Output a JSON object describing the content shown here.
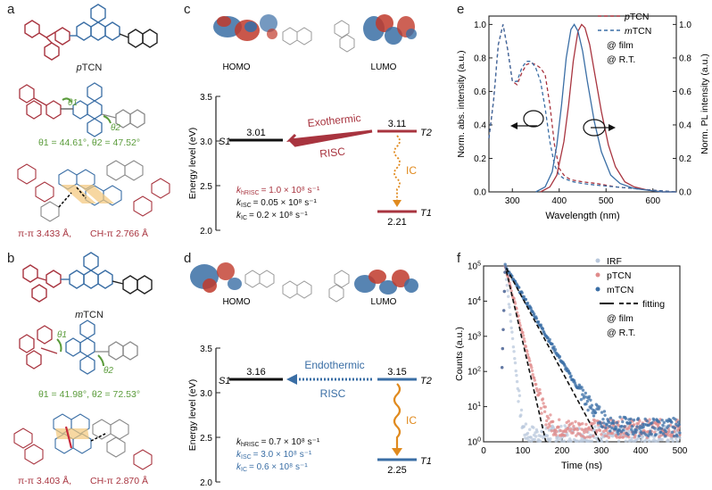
{
  "colors": {
    "red": "#a8343f",
    "blue": "#3a6ea5",
    "green": "#5a9b3a",
    "orange": "#e08a1e",
    "black": "#111111",
    "grey": "#999999"
  },
  "panel_a": {
    "letter": "a",
    "molecule_label": "pTCN",
    "molecule_label_prefix": "p",
    "molecule_label_suffix": "TCN",
    "theta1_label": "θ1",
    "theta2_label": "θ2",
    "angles_text": "θ1 = 44.61°, θ2 = 47.52°",
    "stacking_text_red": "π-π 3.433 Å,",
    "stacking_text_black": "CH-π 2.766 Å"
  },
  "panel_b": {
    "letter": "b",
    "molecule_label": "mTCN",
    "molecule_label_prefix": "m",
    "molecule_label_suffix": "TCN",
    "theta1_label": "θ1",
    "theta2_label": "θ2",
    "angles_text": "θ1 = 41.98°, θ2 = 72.53°",
    "stacking_text_red": "π-π 3.403 Å,",
    "stacking_text_black": "CH-π 2.870 Å"
  },
  "panel_c": {
    "letter": "c",
    "homo_label": "HOMO",
    "lumo_label": "LUMO",
    "ylabel": "Energy level (eV)",
    "yticks": [
      "3.5",
      "3.0",
      "2.5",
      "2.0"
    ],
    "ylim": [
      2.0,
      3.5
    ],
    "s1_label": "S1",
    "s1_value": "3.01",
    "t2_label": "T2",
    "t2_value": "3.11",
    "t1_label": "T1",
    "t1_value": "2.21",
    "arrow_label_1": "Exothermic",
    "arrow_label_2": "RISC",
    "ic_label": "IC",
    "k_rows": [
      {
        "name": "k",
        "sub": "hRISC",
        "value": "= 1.0 × 10⁸ s⁻¹",
        "color": "red"
      },
      {
        "name": "k",
        "sub": "ISC",
        "value": "= 0.05 × 10⁸ s⁻¹",
        "color": "black"
      },
      {
        "name": "k",
        "sub": "IC",
        "value": "= 0.2 × 10⁸ s⁻¹",
        "color": "black"
      }
    ]
  },
  "panel_d": {
    "letter": "d",
    "homo_label": "HOMO",
    "lumo_label": "LUMO",
    "ylabel": "Energy level (eV)",
    "yticks": [
      "3.5",
      "3.0",
      "2.5",
      "2.0"
    ],
    "ylim": [
      2.0,
      3.5
    ],
    "s1_label": "S1",
    "s1_value": "3.16",
    "t2_label": "T2",
    "t2_value": "3.15",
    "t1_label": "T1",
    "t1_value": "2.25",
    "arrow_label_1": "Endothermic",
    "arrow_label_2": "RISC",
    "ic_label": "IC",
    "k_rows": [
      {
        "name": "k",
        "sub": "hRISC",
        "value": "= 0.7 × 10⁸ s⁻¹",
        "color": "black"
      },
      {
        "name": "k",
        "sub": "ISC",
        "value": "= 3.0 × 10⁸ s⁻¹",
        "color": "blue"
      },
      {
        "name": "k",
        "sub": "IC",
        "value": "= 0.6 × 10⁸ s⁻¹",
        "color": "blue"
      }
    ]
  },
  "chart_data": [
    {
      "panel": "e",
      "type": "line",
      "xlabel": "Wavelength (nm)",
      "ylabel_left": "Norm. abs. intensity (a.u.)",
      "ylabel_right": "Norm. PL intensity (a.u.)",
      "xlim": [
        250,
        650
      ],
      "ylim": [
        0,
        1.05
      ],
      "xticks": [
        "300",
        "400",
        "500",
        "600"
      ],
      "yticks": [
        "0.0",
        "0.2",
        "0.4",
        "0.6",
        "0.8",
        "1.0"
      ],
      "legend": [
        "pTCN",
        "mTCN"
      ],
      "legend_prefixes": [
        "p",
        "m"
      ],
      "legend_suffix": "TCN",
      "notes": [
        "@ film",
        "@ R.T."
      ],
      "series": [
        {
          "name": "pTCN abs",
          "style": "dashed",
          "color": "red",
          "x": [
            250,
            260,
            270,
            280,
            290,
            300,
            310,
            320,
            330,
            340,
            350,
            360,
            370,
            380,
            390,
            400,
            410,
            420,
            430,
            450,
            480,
            520,
            560,
            600,
            650
          ],
          "y": [
            0.32,
            0.55,
            0.88,
            1.0,
            0.85,
            0.66,
            0.64,
            0.71,
            0.76,
            0.77,
            0.76,
            0.74,
            0.7,
            0.52,
            0.28,
            0.14,
            0.1,
            0.08,
            0.07,
            0.06,
            0.05,
            0.03,
            0.02,
            0.01,
            0.0
          ]
        },
        {
          "name": "mTCN abs",
          "style": "dashed",
          "color": "blue",
          "x": [
            250,
            260,
            270,
            280,
            290,
            300,
            310,
            320,
            330,
            340,
            350,
            360,
            370,
            380,
            390,
            400,
            410,
            420,
            430,
            450,
            480,
            520,
            560,
            600,
            650
          ],
          "y": [
            0.32,
            0.55,
            0.88,
            1.0,
            0.85,
            0.66,
            0.66,
            0.74,
            0.78,
            0.78,
            0.74,
            0.66,
            0.5,
            0.3,
            0.16,
            0.1,
            0.08,
            0.07,
            0.06,
            0.05,
            0.04,
            0.03,
            0.02,
            0.01,
            0.0
          ]
        },
        {
          "name": "pTCN PL",
          "style": "solid",
          "color": "red",
          "x": [
            360,
            380,
            395,
            410,
            420,
            430,
            440,
            448,
            455,
            465,
            475,
            490,
            505,
            520,
            540,
            560,
            590,
            620,
            650
          ],
          "y": [
            0.0,
            0.03,
            0.1,
            0.3,
            0.52,
            0.78,
            0.96,
            1.0,
            0.98,
            0.88,
            0.72,
            0.48,
            0.28,
            0.15,
            0.06,
            0.03,
            0.01,
            0.0,
            0.0
          ]
        },
        {
          "name": "mTCN PL",
          "style": "solid",
          "color": "blue",
          "x": [
            350,
            370,
            385,
            395,
            405,
            415,
            425,
            432,
            440,
            450,
            460,
            475,
            490,
            510,
            530,
            560,
            590,
            620,
            650
          ],
          "y": [
            0.0,
            0.03,
            0.12,
            0.28,
            0.52,
            0.8,
            0.97,
            1.0,
            0.96,
            0.84,
            0.66,
            0.42,
            0.24,
            0.1,
            0.05,
            0.02,
            0.01,
            0.0,
            0.0
          ]
        }
      ]
    },
    {
      "panel": "f",
      "type": "scatter",
      "xlabel": "Time (ns)",
      "ylabel": "Counts (a.u.)",
      "xlim": [
        0,
        500
      ],
      "ylim_log10": [
        0,
        5
      ],
      "xticks": [
        "0",
        "100",
        "200",
        "300",
        "400",
        "500"
      ],
      "yticks": [
        {
          "base": "10",
          "exp": "0"
        },
        {
          "base": "10",
          "exp": "1"
        },
        {
          "base": "10",
          "exp": "2"
        },
        {
          "base": "10",
          "exp": "3"
        },
        {
          "base": "10",
          "exp": "4"
        },
        {
          "base": "10",
          "exp": "5"
        }
      ],
      "legend": [
        "IRF",
        "pTCN",
        "mTCN",
        "fitting"
      ],
      "notes": [
        "@ film",
        "@ R.T."
      ],
      "series": [
        {
          "name": "IRF",
          "color": "#b9c8dc",
          "peak_time": 55,
          "peak": 100000,
          "tau": 4,
          "floor": 1.6
        },
        {
          "name": "pTCN",
          "color": "#e08b8b",
          "peak_time": 55,
          "peak": 100000,
          "tau": 10,
          "floor": 2.4
        },
        {
          "name": "mTCN",
          "color": "#3a6ea5",
          "peak_time": 55,
          "peak": 100000,
          "tau": 23,
          "floor": 2.6
        }
      ]
    }
  ]
}
